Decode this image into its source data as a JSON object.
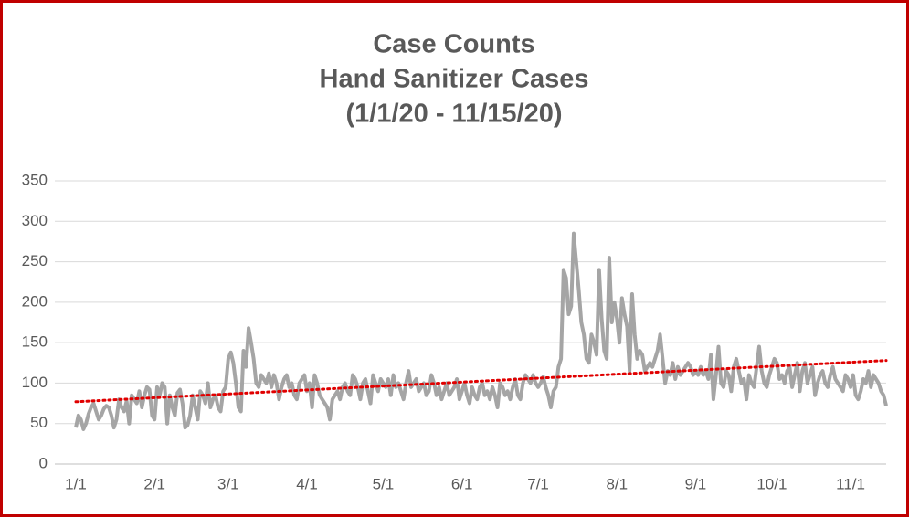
{
  "chart_data": {
    "type": "line",
    "title": [
      "Case Counts",
      "Hand Sanitizer Cases",
      "(1/1/20 - 11/15/20)"
    ],
    "categories": [
      "1/1",
      null,
      null,
      null,
      null,
      null,
      null,
      null,
      null,
      null,
      null,
      null,
      null,
      null,
      null,
      null,
      null,
      null,
      null,
      null,
      null,
      null,
      null,
      null,
      null,
      null,
      null,
      null,
      null,
      null,
      null,
      "2/1",
      null,
      null,
      null,
      null,
      null,
      null,
      null,
      null,
      null,
      null,
      null,
      null,
      null,
      null,
      null,
      null,
      null,
      null,
      null,
      null,
      null,
      null,
      null,
      null,
      null,
      null,
      null,
      null,
      "3/1",
      null,
      null,
      null,
      null,
      null,
      null,
      null,
      null,
      null,
      null,
      null,
      null,
      null,
      null,
      null,
      null,
      null,
      null,
      null,
      null,
      null,
      null,
      null,
      null,
      null,
      null,
      null,
      null,
      null,
      null,
      "4/1",
      null,
      null,
      null,
      null,
      null,
      null,
      null,
      null,
      null,
      null,
      null,
      null,
      null,
      null,
      null,
      null,
      null,
      null,
      null,
      null,
      null,
      null,
      null,
      null,
      null,
      null,
      null,
      null,
      null,
      "5/1",
      null,
      null,
      null,
      null,
      null,
      null,
      null,
      null,
      null,
      null,
      null,
      null,
      null,
      null,
      null,
      null,
      null,
      null,
      null,
      null,
      null,
      null,
      null,
      null,
      null,
      null,
      null,
      null,
      null,
      null,
      "6/1",
      null,
      null,
      null,
      null,
      null,
      null,
      null,
      null,
      null,
      null,
      null,
      null,
      null,
      null,
      null,
      null,
      null,
      null,
      null,
      null,
      null,
      null,
      null,
      null,
      null,
      null,
      null,
      null,
      null,
      "7/1",
      null,
      null,
      null,
      null,
      null,
      null,
      null,
      null,
      null,
      null,
      null,
      null,
      null,
      null,
      null,
      null,
      null,
      null,
      null,
      null,
      null,
      null,
      null,
      null,
      null,
      null,
      null,
      null,
      null,
      null,
      "8/1",
      null,
      null,
      null,
      null,
      null,
      null,
      null,
      null,
      null,
      null,
      null,
      null,
      null,
      null,
      null,
      null,
      null,
      null,
      null,
      null,
      null,
      null,
      null,
      null,
      null,
      null,
      null,
      null,
      null,
      null,
      "9/1",
      null,
      null,
      null,
      null,
      null,
      null,
      null,
      null,
      null,
      null,
      null,
      null,
      null,
      null,
      null,
      null,
      null,
      null,
      null,
      null,
      null,
      null,
      null,
      null,
      null,
      null,
      null,
      null,
      null,
      "10/1",
      null,
      null,
      null,
      null,
      null,
      null,
      null,
      null,
      null,
      null,
      null,
      null,
      null,
      null,
      null,
      null,
      null,
      null,
      null,
      null,
      null,
      null,
      null,
      null,
      null,
      null,
      null,
      null,
      null,
      null,
      "11/1",
      null,
      null,
      null,
      null,
      null,
      null,
      null,
      null,
      null,
      null,
      null,
      null,
      null,
      null
    ],
    "values": [
      45,
      60,
      55,
      43,
      50,
      62,
      70,
      75,
      65,
      55,
      60,
      68,
      72,
      70,
      60,
      45,
      55,
      80,
      70,
      65,
      78,
      50,
      85,
      80,
      75,
      90,
      70,
      85,
      95,
      92,
      60,
      55,
      95,
      85,
      100,
      95,
      50,
      85,
      70,
      60,
      88,
      92,
      75,
      45,
      48,
      60,
      85,
      70,
      55,
      90,
      85,
      75,
      100,
      70,
      80,
      85,
      70,
      65,
      90,
      95,
      130,
      138,
      125,
      100,
      70,
      65,
      140,
      120,
      168,
      150,
      130,
      100,
      95,
      110,
      105,
      100,
      112,
      95,
      110,
      100,
      80,
      95,
      105,
      110,
      95,
      100,
      85,
      80,
      100,
      105,
      110,
      90,
      100,
      70,
      110,
      100,
      85,
      80,
      75,
      70,
      55,
      80,
      85,
      90,
      80,
      95,
      100,
      90,
      85,
      110,
      105,
      95,
      80,
      100,
      105,
      90,
      75,
      110,
      100,
      90,
      105,
      100,
      95,
      105,
      85,
      110,
      95,
      100,
      90,
      80,
      100,
      115,
      95,
      100,
      105,
      90,
      95,
      100,
      85,
      90,
      110,
      100,
      85,
      95,
      80,
      90,
      100,
      85,
      90,
      95,
      105,
      80,
      90,
      100,
      85,
      75,
      95,
      85,
      80,
      95,
      100,
      85,
      90,
      80,
      95,
      85,
      70,
      100,
      95,
      85,
      90,
      80,
      95,
      105,
      85,
      80,
      100,
      110,
      105,
      100,
      110,
      100,
      95,
      100,
      108,
      95,
      85,
      70,
      90,
      95,
      120,
      130,
      240,
      230,
      185,
      195,
      285,
      250,
      215,
      175,
      160,
      130,
      125,
      160,
      150,
      135,
      240,
      180,
      140,
      130,
      255,
      175,
      200,
      180,
      150,
      205,
      185,
      170,
      115,
      210,
      160,
      130,
      140,
      135,
      115,
      120,
      125,
      120,
      130,
      140,
      160,
      130,
      100,
      115,
      110,
      125,
      105,
      120,
      110,
      115,
      120,
      125,
      120,
      110,
      115,
      110,
      120,
      110,
      115,
      105,
      135,
      80,
      110,
      145,
      100,
      95,
      115,
      110,
      90,
      120,
      130,
      115,
      100,
      105,
      80,
      110,
      100,
      95,
      120,
      145,
      115,
      100,
      95,
      110,
      120,
      130,
      125,
      105,
      110,
      100,
      115,
      120,
      95,
      110,
      125,
      90,
      115,
      125,
      100,
      110,
      120,
      85,
      100,
      110,
      115,
      100,
      95,
      110,
      120,
      105,
      100,
      95,
      90,
      110,
      105,
      95,
      110,
      85,
      80,
      90,
      105,
      100,
      115,
      95,
      110,
      105,
      100,
      90,
      85,
      72
    ],
    "color": "#a5a5a5",
    "trendline": {
      "color": "#e00000",
      "values": [
        77,
        128
      ]
    },
    "ylim": [
      0,
      350
    ],
    "yticks": [
      0,
      50,
      100,
      150,
      200,
      250,
      300,
      350
    ],
    "grid": true
  }
}
